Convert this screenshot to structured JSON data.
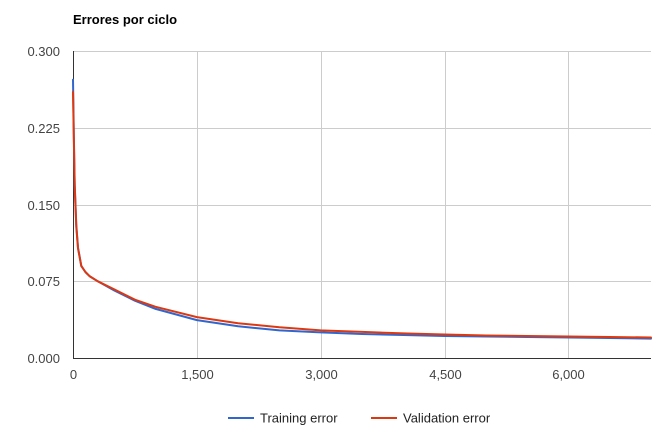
{
  "chart_data": {
    "type": "line",
    "title": "Errores por ciclo",
    "xlabel": "",
    "ylabel": "",
    "xlim": [
      0,
      7000
    ],
    "ylim": [
      0,
      0.3
    ],
    "x_ticks": [
      0,
      1500,
      3000,
      4500,
      6000
    ],
    "x_tick_labels": [
      "0",
      "1,500",
      "3,000",
      "4,500",
      "6,000"
    ],
    "y_ticks": [
      0,
      0.075,
      0.15,
      0.225,
      0.3
    ],
    "y_tick_labels": [
      "0.000",
      "0.075",
      "0.150",
      "0.225",
      "0.300"
    ],
    "grid": true,
    "legend_position": "bottom",
    "x": [
      0,
      10,
      20,
      40,
      60,
      100,
      150,
      200,
      300,
      500,
      750,
      1000,
      1500,
      2000,
      2500,
      3000,
      3500,
      4000,
      4500,
      5000,
      5500,
      6000,
      6500,
      7000
    ],
    "series": [
      {
        "name": "Training error",
        "color": "#3366cc",
        "values": [
          0.272,
          0.22,
          0.17,
          0.13,
          0.108,
          0.09,
          0.084,
          0.08,
          0.075,
          0.066,
          0.056,
          0.048,
          0.037,
          0.031,
          0.027,
          0.025,
          0.0235,
          0.0225,
          0.0215,
          0.021,
          0.0205,
          0.02,
          0.0195,
          0.019
        ]
      },
      {
        "name": "Validation error",
        "color": "#dc3912",
        "values": [
          0.26,
          0.215,
          0.168,
          0.128,
          0.107,
          0.09,
          0.084,
          0.08,
          0.075,
          0.067,
          0.057,
          0.05,
          0.04,
          0.034,
          0.03,
          0.027,
          0.0255,
          0.024,
          0.023,
          0.022,
          0.0215,
          0.021,
          0.0205,
          0.02
        ]
      }
    ]
  }
}
